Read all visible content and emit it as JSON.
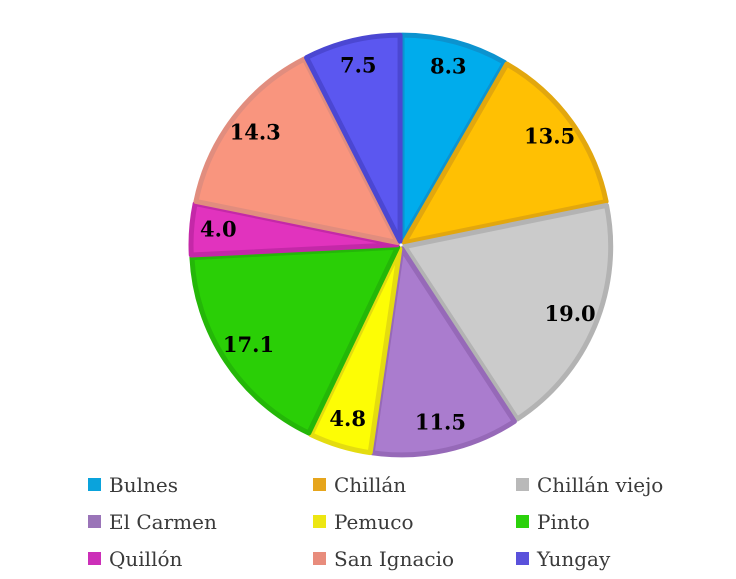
{
  "chart_data": {
    "type": "pie",
    "title": "",
    "categories": [
      "Bulnes",
      "Chillán",
      "Chillán viejo",
      "El Carmen",
      "Pemuco",
      "Pinto",
      "Quillón",
      "San Ignacio",
      "Yungay"
    ],
    "values": [
      8.3,
      13.5,
      19.0,
      11.5,
      4.8,
      17.1,
      4.0,
      14.3,
      7.5
    ],
    "value_labels": [
      "8.3",
      "13.5",
      "19.0",
      "11.5",
      "4.8",
      "17.1",
      "4.0",
      "14.3",
      "7.5"
    ],
    "slice_fill_colors": [
      "#00ACEC",
      "#FFC003",
      "#CBCBCB",
      "#AA7CCE",
      "#FDFD05",
      "#2ACF06",
      "#E133BE",
      "#F9957E",
      "#5B57F0"
    ],
    "slice_border_colors": [
      "#0C93CF",
      "#E2A70E",
      "#B3B3B3",
      "#9669B8",
      "#E4DC10",
      "#24B708",
      "#C428A8",
      "#E18D7E",
      "#4B47D2"
    ],
    "legend_swatch_colors": [
      "#0AA3DC",
      "#E6A51C",
      "#B9B9B9",
      "#9A74B8",
      "#EDE612",
      "#2BD10B",
      "#CC2FB8",
      "#E88C7C",
      "#5A51DB"
    ],
    "value_label_color": "#000000",
    "legend_text_color": "#3A3A3A",
    "background_color": "#FFFFFF",
    "start_angle_deg": 0,
    "direction": "clockwise",
    "labels_inside": true,
    "legend_position": "bottom",
    "legend_rows": 3,
    "legend_columns": 3
  }
}
